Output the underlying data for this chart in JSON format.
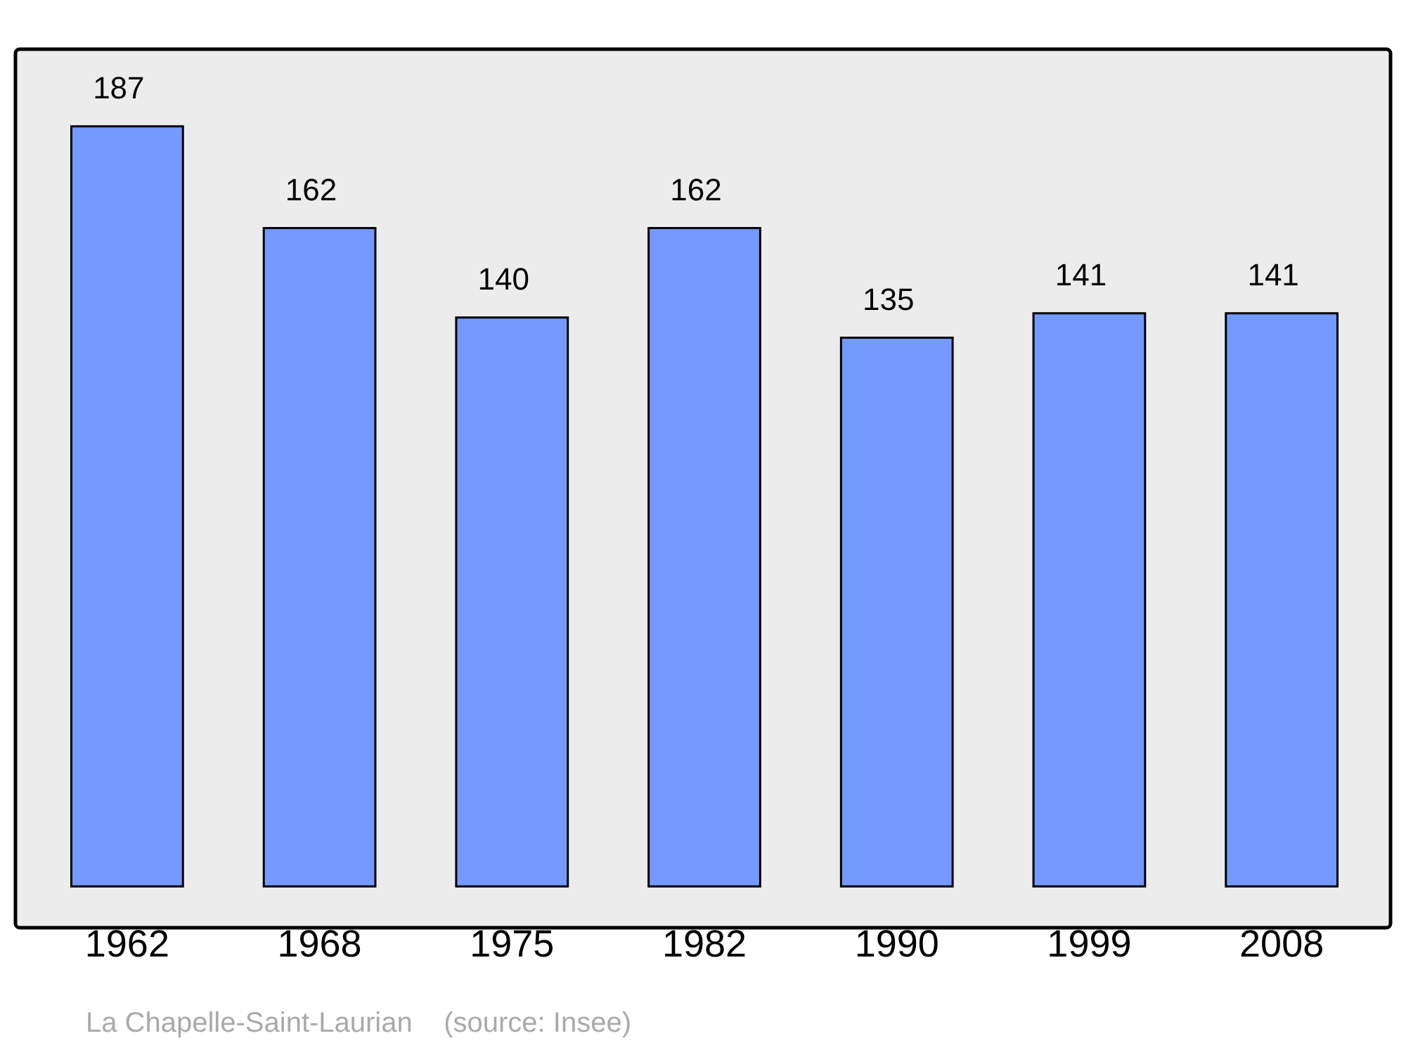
{
  "chart_data": {
    "type": "bar",
    "categories": [
      "1962",
      "1968",
      "1975",
      "1982",
      "1990",
      "1999",
      "2008"
    ],
    "values": [
      187,
      162,
      140,
      162,
      135,
      141,
      141
    ],
    "color": "#7499ff",
    "ylim": [
      0,
      206
    ],
    "data_labels": true,
    "legend": false,
    "annotations": [
      "La Chapelle-Saint-Laurian    (source: Insee)"
    ]
  }
}
